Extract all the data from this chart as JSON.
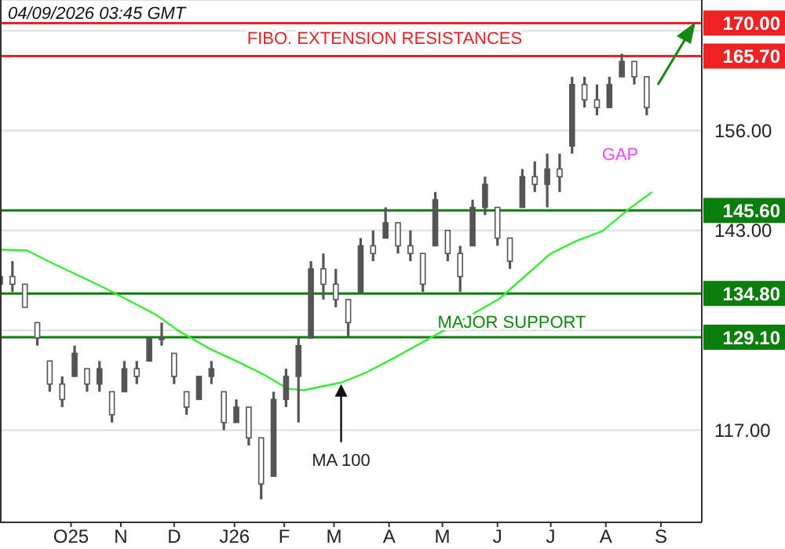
{
  "chart_data": {
    "type": "candlestick",
    "title": "04/09/2026 03:45 GMT",
    "color": "#555555",
    "x": [
      "2025-09-01",
      "2025-09-08",
      "2025-09-15",
      "2025-09-22",
      "2025-09-29",
      "2025-10-06",
      "2025-10-13",
      "2025-10-20",
      "2025-10-27",
      "2025-11-03",
      "2025-11-10",
      "2025-11-17",
      "2025-11-24",
      "2025-12-01",
      "2025-12-08",
      "2025-12-15",
      "2025-12-22",
      "2025-12-29",
      "2026-01-05",
      "2026-01-12",
      "2026-01-19",
      "2026-01-26",
      "2026-02-02",
      "2026-02-09",
      "2026-02-16",
      "2026-02-23",
      "2026-03-02",
      "2026-03-09",
      "2026-03-16",
      "2026-03-23",
      "2026-03-30",
      "2026-04-06",
      "2026-04-13",
      "2026-04-20",
      "2026-04-27",
      "2026-05-04",
      "2026-05-11",
      "2026-05-18",
      "2026-05-25",
      "2026-06-01",
      "2026-06-08",
      "2026-06-15",
      "2026-06-22",
      "2026-06-29",
      "2026-07-06",
      "2026-07-13",
      "2026-07-20",
      "2026-07-27",
      "2026-08-03",
      "2026-08-10",
      "2026-08-17",
      "2026-08-24",
      "2026-08-31"
    ],
    "ohlc": [
      [
        136,
        139,
        134,
        137
      ],
      [
        137,
        139,
        135,
        136
      ],
      [
        136,
        136,
        133,
        133
      ],
      [
        131,
        131,
        128,
        129
      ],
      [
        126,
        126,
        122,
        123
      ],
      [
        123,
        124,
        120,
        121
      ],
      [
        124,
        128,
        124,
        127
      ],
      [
        125,
        125,
        122,
        123
      ],
      [
        123,
        126,
        122,
        125
      ],
      [
        122,
        122,
        118,
        119
      ],
      [
        122,
        126,
        122,
        125
      ],
      [
        125,
        126,
        123,
        124
      ],
      [
        126,
        129,
        126,
        129
      ],
      [
        129,
        131,
        128,
        129
      ],
      [
        127,
        127,
        123,
        124
      ],
      [
        122,
        122,
        119,
        120
      ],
      [
        121,
        124,
        121,
        124
      ],
      [
        124,
        126,
        123,
        125
      ],
      [
        122,
        122,
        117,
        118
      ],
      [
        118,
        121,
        118,
        120
      ],
      [
        120,
        120,
        115,
        116
      ],
      [
        116,
        116,
        108,
        110
      ],
      [
        111,
        122,
        111,
        121
      ],
      [
        121,
        125,
        120,
        124
      ],
      [
        124,
        129,
        118,
        128
      ],
      [
        129,
        139,
        129,
        138
      ],
      [
        138,
        140,
        134,
        136
      ],
      [
        136,
        138,
        133,
        134
      ],
      [
        134,
        134,
        129,
        131
      ],
      [
        135,
        142,
        135,
        141
      ],
      [
        141,
        143,
        139,
        140
      ],
      [
        142,
        146,
        142,
        144
      ],
      [
        144,
        144,
        140,
        141
      ],
      [
        141,
        143,
        139,
        140
      ],
      [
        140,
        140,
        135,
        136
      ],
      [
        141,
        148,
        141,
        147
      ],
      [
        143,
        143,
        139,
        140
      ],
      [
        140,
        141,
        135,
        137
      ],
      [
        141,
        147,
        141,
        146
      ],
      [
        146,
        150,
        145,
        149
      ],
      [
        146,
        146,
        141,
        142
      ],
      [
        142,
        142,
        138,
        139
      ],
      [
        146,
        151,
        146,
        150
      ],
      [
        150,
        152,
        148,
        149
      ],
      [
        149,
        153,
        146,
        151
      ],
      [
        151,
        153,
        148,
        150
      ],
      [
        154,
        163,
        153,
        162
      ],
      [
        162,
        163,
        159,
        160
      ],
      [
        160,
        162,
        158,
        159
      ],
      [
        159,
        163,
        159,
        162
      ],
      [
        163,
        166,
        163,
        165
      ],
      [
        165,
        165,
        162,
        163
      ],
      [
        163,
        163,
        158,
        159
      ]
    ],
    "series": [
      {
        "type": "line",
        "name": "MA 100",
        "color": "#33ee33",
        "x": [
          "2025-09-01",
          "2025-09-16",
          "2025-09-30",
          "2025-10-30",
          "2025-11-28",
          "2025-12-10",
          "2025-12-28",
          "2026-01-12",
          "2026-01-27",
          "2026-02-10",
          "2026-02-19",
          "2026-03-12",
          "2026-03-26",
          "2026-04-10",
          "2026-05-09",
          "2026-06-09",
          "2026-07-08",
          "2026-07-23",
          "2026-08-06",
          "2026-08-21",
          "2026-09-03"
        ],
        "values": [
          140.5,
          140.4,
          138.8,
          135.5,
          132,
          130,
          127.6,
          126,
          124.3,
          122.4,
          122.2,
          123.2,
          124.5,
          126.3,
          130,
          134.1,
          140,
          141.7,
          142.9,
          145.8,
          148
        ]
      }
    ],
    "xlim": [
      "2025-09-01",
      "2026-10-01"
    ],
    "xticks": [
      {
        "value": "2025-10-11",
        "label": "O25"
      },
      {
        "value": "2025-11-08",
        "label": "N"
      },
      {
        "value": "2025-12-08",
        "label": "D"
      },
      {
        "value": "2026-01-11",
        "label": "J26"
      },
      {
        "value": "2026-02-08",
        "label": "F"
      },
      {
        "value": "2026-03-08",
        "label": "M"
      },
      {
        "value": "2026-04-08",
        "label": "A"
      },
      {
        "value": "2026-05-08",
        "label": "M"
      },
      {
        "value": "2026-06-08",
        "label": "J"
      },
      {
        "value": "2026-07-08",
        "label": "J"
      },
      {
        "value": "2026-08-08",
        "label": "A"
      },
      {
        "value": "2026-09-08",
        "label": "S"
      }
    ],
    "ylim": [
      105,
      173
    ],
    "yticks": [
      {
        "value": 117,
        "label": "117.00"
      },
      {
        "value": 130,
        "label": null
      },
      {
        "value": 143,
        "label": "143.00"
      },
      {
        "value": 156,
        "label": "156.00"
      },
      {
        "value": 169,
        "label": null
      }
    ],
    "grid": "y",
    "ref_lines": [
      {
        "axis": "y",
        "value": 170,
        "label": "170.00",
        "color": "#ee2222"
      },
      {
        "axis": "y",
        "value": 165.7,
        "label": "165.70",
        "color": "#ee2222"
      },
      {
        "axis": "y",
        "value": 145.6,
        "label": "145.60",
        "color": "#0a7d0a"
      },
      {
        "axis": "y",
        "value": 134.8,
        "label": "134.80",
        "color": "#0a7d0a"
      },
      {
        "axis": "y",
        "value": 129.1,
        "label": "129.10",
        "color": "#0a7d0a"
      }
    ],
    "annotations": [
      "FIBO. EXTENSION RESISTANCES",
      "GAP",
      "MAJOR SUPPORT"
    ]
  }
}
